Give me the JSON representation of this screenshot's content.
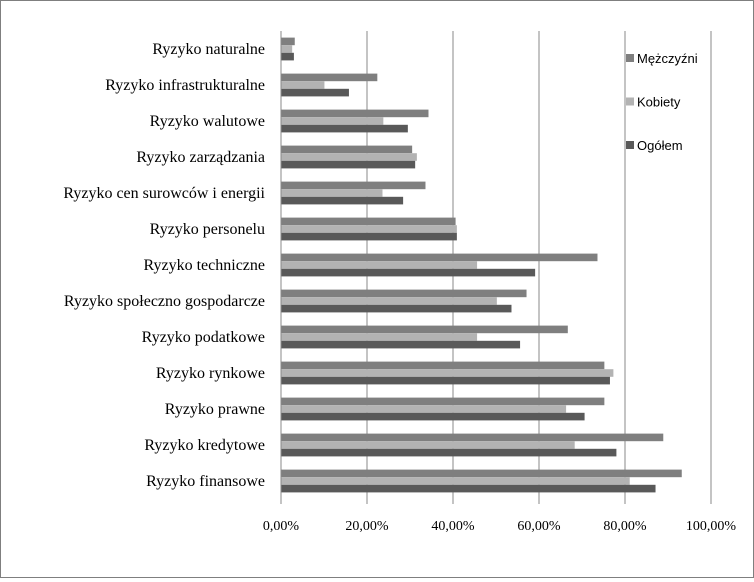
{
  "chart_data": {
    "type": "bar",
    "orientation": "horizontal",
    "title": "",
    "xlabel": "",
    "ylabel": "",
    "xlim": [
      0,
      100
    ],
    "grid": true,
    "legend_position": "top-right",
    "categories": [
      "Ryzyko naturalne",
      "Ryzyko infrastrukturalne",
      "Ryzyko walutowe",
      "Ryzyko zarządzania",
      "Ryzyko cen surowców i energii",
      "Ryzyko personelu",
      "Ryzyko techniczne",
      "Ryzyko społeczno gospodarcze",
      "Ryzyko podatkowe",
      "Ryzyko rynkowe",
      "Ryzyko prawne",
      "Ryzyko kredytowe",
      "Ryzyko finansowe"
    ],
    "x_ticks": [
      "0,00%",
      "20,00%",
      "40,00%",
      "60,00%",
      "80,00%",
      "100,00%"
    ],
    "series": [
      {
        "name": "Mężczyźni",
        "color": "#7f7f7f",
        "values": [
          3.2,
          22.4,
          34.3,
          30.5,
          33.6,
          40.6,
          73.6,
          57.1,
          66.7,
          75.2,
          75.2,
          88.9,
          93.2
        ]
      },
      {
        "name": "Kobiety",
        "color": "#b3b3b3",
        "values": [
          2.6,
          10.1,
          23.8,
          31.6,
          23.6,
          40.9,
          45.6,
          50.2,
          45.6,
          77.3,
          66.3,
          68.3,
          81.1
        ]
      },
      {
        "name": "Ogółem",
        "color": "#595959",
        "values": [
          3.0,
          15.8,
          29.5,
          31.2,
          28.4,
          40.9,
          59.1,
          53.6,
          55.6,
          76.5,
          70.6,
          78.0,
          87.1
        ]
      }
    ]
  }
}
